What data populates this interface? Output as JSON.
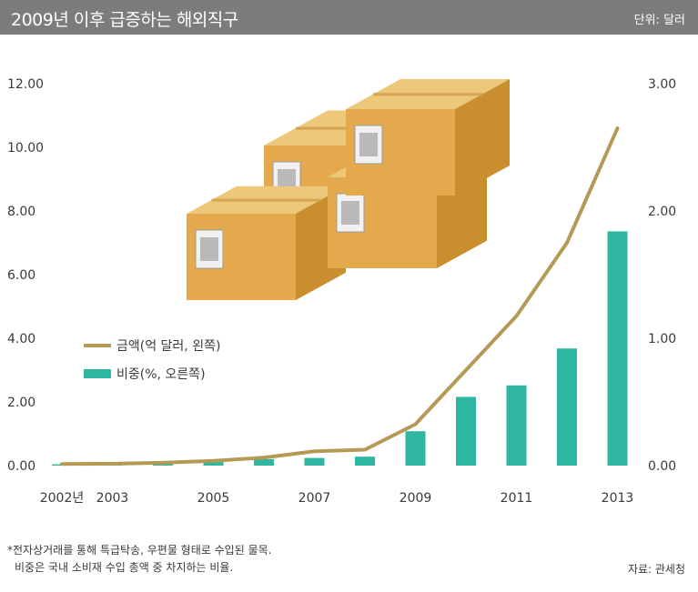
{
  "header": {
    "title": "2009년 이후 급증하는 해외직구",
    "unit": "단위: 달러"
  },
  "footnote": {
    "line1": "*전자상거래를 통해 특급탁송, 우편물 형태로 수입된 물목.",
    "line2": "비중은 국내 소비재 수입 총액 중 차지하는 비율."
  },
  "source": "자료: 관세청",
  "colors": {
    "line": "#b59a55",
    "bar": "#2fb7a2",
    "header_bg": "#7c7c7c"
  },
  "chart_data": {
    "type": "bar",
    "x": [
      "2002",
      "2003",
      "2004",
      "2005",
      "2006",
      "2007",
      "2008",
      "2009",
      "2010",
      "2011",
      "2012",
      "2013"
    ],
    "x_tick_labels": [
      {
        "year": "2002",
        "label": "2002년"
      },
      {
        "year": "2003",
        "label": "2003"
      },
      {
        "year": "2005",
        "label": "2005"
      },
      {
        "year": "2007",
        "label": "2007"
      },
      {
        "year": "2009",
        "label": "2009"
      },
      {
        "year": "2011",
        "label": "2011"
      },
      {
        "year": "2013",
        "label": "2013"
      }
    ],
    "left_axis": {
      "ticks": [
        "12.00",
        "10.00",
        "8.00",
        "6.00",
        "4.00",
        "2.00",
        "0.00"
      ],
      "ylim": [
        0,
        12
      ]
    },
    "right_axis": {
      "ticks": [
        "3.00",
        "2.00",
        "1.00",
        "0.00"
      ],
      "ylim": [
        0,
        3
      ]
    },
    "series": [
      {
        "name": "금액(억 달러, 왼쪽)",
        "type": "line",
        "axis": "left",
        "values": [
          0.05,
          0.06,
          0.09,
          0.15,
          0.25,
          0.45,
          0.5,
          1.3,
          3.0,
          4.7,
          7.0,
          10.6
        ]
      },
      {
        "name": "비중(%, 오른쪽)",
        "type": "bar",
        "axis": "right",
        "values": [
          0.01,
          0.02,
          0.03,
          0.04,
          0.05,
          0.06,
          0.07,
          0.27,
          0.54,
          0.63,
          0.92,
          1.84
        ]
      }
    ],
    "legend_position": "left-middle",
    "grid": false
  }
}
